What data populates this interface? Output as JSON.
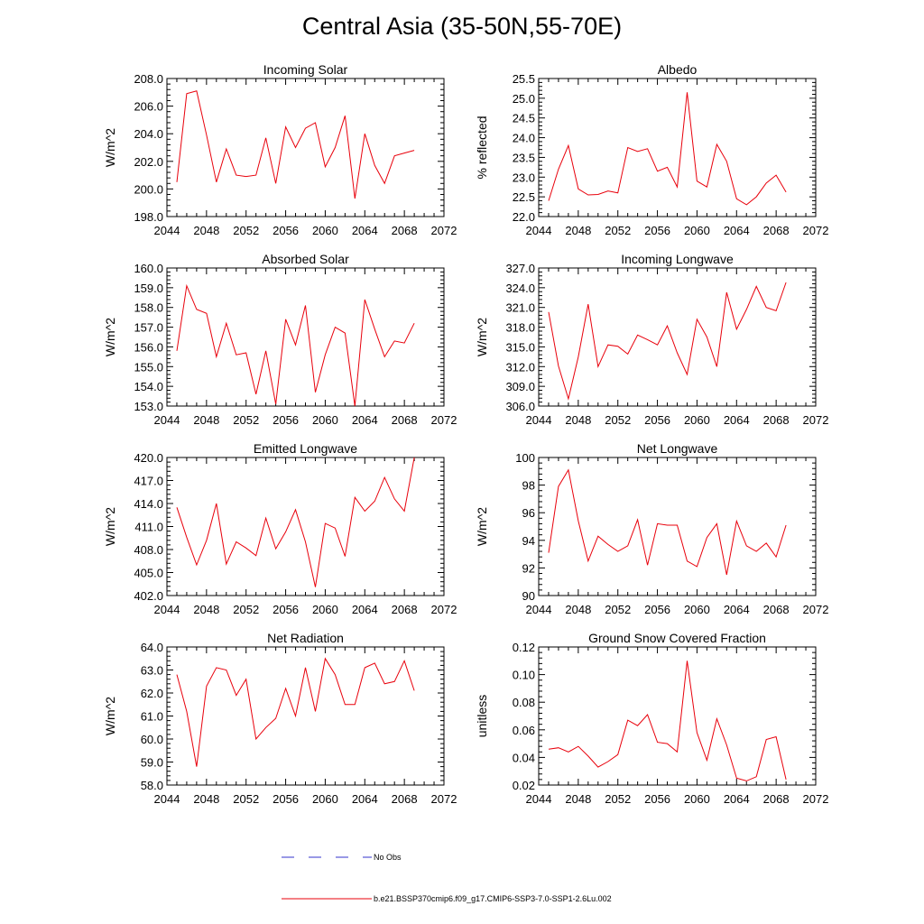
{
  "figure": {
    "title": "Central Asia (35-50N,55-70E)"
  },
  "legend": [
    {
      "label": "No Obs",
      "color": "#3333cc",
      "dashed": true
    },
    {
      "label": "b.e21.BSSP370cmip6.f09_g17.CMIP6-SSP3-7.0-SSP1-2.6Lu.002",
      "color": "#e8000b",
      "dashed": false
    }
  ],
  "chart_data": [
    {
      "type": "line",
      "title": "Incoming Solar",
      "xlabel": "",
      "ylabel": "W/m^2",
      "xlim": [
        2044,
        2072
      ],
      "ylim": [
        198.0,
        208.0
      ],
      "xticks": [
        2044,
        2048,
        2052,
        2056,
        2060,
        2064,
        2068,
        2072
      ],
      "yticks": [
        "198.0",
        "200.0",
        "202.0",
        "204.0",
        "206.0",
        "208.0"
      ],
      "series": [
        {
          "color": "#e8000b",
          "x": [
            2045,
            2046,
            2047,
            2048,
            2049,
            2050,
            2051,
            2052,
            2053,
            2054,
            2055,
            2056,
            2057,
            2058,
            2059,
            2060,
            2061,
            2062,
            2063,
            2064,
            2065,
            2066,
            2067,
            2068,
            2069
          ],
          "values": [
            200.5,
            206.9,
            207.1,
            203.9,
            200.5,
            202.9,
            201.0,
            200.9,
            201.0,
            203.7,
            200.4,
            204.5,
            203.0,
            204.4,
            204.8,
            201.6,
            203.0,
            205.3,
            199.3,
            204.0,
            201.7,
            200.4,
            202.4,
            202.6,
            202.8
          ]
        }
      ]
    },
    {
      "type": "line",
      "title": "Albedo",
      "xlabel": "",
      "ylabel": "% reflected",
      "xlim": [
        2044,
        2072
      ],
      "ylim": [
        22.0,
        25.5
      ],
      "xticks": [
        2044,
        2048,
        2052,
        2056,
        2060,
        2064,
        2068,
        2072
      ],
      "yticks": [
        "22.0",
        "22.5",
        "23.0",
        "23.5",
        "24.0",
        "24.5",
        "25.0",
        "25.5"
      ],
      "series": [
        {
          "color": "#e8000b",
          "x": [
            2045,
            2046,
            2047,
            2048,
            2049,
            2050,
            2051,
            2052,
            2053,
            2054,
            2055,
            2056,
            2057,
            2058,
            2059,
            2060,
            2061,
            2062,
            2063,
            2064,
            2065,
            2066,
            2067,
            2068,
            2069
          ],
          "values": [
            22.4,
            23.2,
            23.8,
            22.7,
            22.55,
            22.56,
            22.65,
            22.6,
            23.75,
            23.65,
            23.72,
            23.15,
            23.25,
            22.75,
            25.15,
            22.9,
            22.75,
            23.83,
            23.4,
            22.45,
            22.3,
            22.5,
            22.85,
            23.05,
            22.62
          ]
        }
      ]
    },
    {
      "type": "line",
      "title": "Absorbed Solar",
      "xlabel": "",
      "ylabel": "W/m^2",
      "xlim": [
        2044,
        2072
      ],
      "ylim": [
        153.0,
        160.0
      ],
      "xticks": [
        2044,
        2048,
        2052,
        2056,
        2060,
        2064,
        2068,
        2072
      ],
      "yticks": [
        "153.0",
        "154.0",
        "155.0",
        "156.0",
        "157.0",
        "158.0",
        "159.0",
        "160.0"
      ],
      "series": [
        {
          "color": "#e8000b",
          "x": [
            2045,
            2046,
            2047,
            2048,
            2049,
            2050,
            2051,
            2052,
            2053,
            2054,
            2055,
            2056,
            2057,
            2058,
            2059,
            2060,
            2061,
            2062,
            2063,
            2064,
            2065,
            2066,
            2067,
            2068,
            2069
          ],
          "values": [
            155.8,
            159.1,
            157.9,
            157.7,
            155.5,
            157.2,
            155.6,
            155.7,
            153.6,
            155.8,
            153.1,
            157.4,
            156.1,
            158.1,
            153.7,
            155.6,
            157.0,
            156.7,
            153.0,
            158.4,
            156.9,
            155.5,
            156.3,
            156.2,
            157.2
          ]
        }
      ]
    },
    {
      "type": "line",
      "title": "Incoming Longwave",
      "xlabel": "",
      "ylabel": "W/m^2",
      "xlim": [
        2044,
        2072
      ],
      "ylim": [
        306.0,
        327.0
      ],
      "xticks": [
        2044,
        2048,
        2052,
        2056,
        2060,
        2064,
        2068,
        2072
      ],
      "yticks": [
        "306.0",
        "309.0",
        "312.0",
        "315.0",
        "318.0",
        "321.0",
        "324.0",
        "327.0"
      ],
      "series": [
        {
          "color": "#e8000b",
          "x": [
            2045,
            2046,
            2047,
            2048,
            2049,
            2050,
            2051,
            2052,
            2053,
            2054,
            2055,
            2056,
            2057,
            2058,
            2059,
            2060,
            2061,
            2062,
            2063,
            2064,
            2065,
            2066,
            2067,
            2068,
            2069
          ],
          "values": [
            320.3,
            312.1,
            307.1,
            313.5,
            321.5,
            312.0,
            315.3,
            315.1,
            313.9,
            316.8,
            316.1,
            315.3,
            318.2,
            314.1,
            310.8,
            319.2,
            316.5,
            312.0,
            323.3,
            317.7,
            320.7,
            324.2,
            321.0,
            320.5,
            324.8
          ]
        }
      ]
    },
    {
      "type": "line",
      "title": "Emitted Longwave",
      "xlabel": "",
      "ylabel": "W/m^2",
      "xlim": [
        2044,
        2072
      ],
      "ylim": [
        402.0,
        420.0
      ],
      "xticks": [
        2044,
        2048,
        2052,
        2056,
        2060,
        2064,
        2068,
        2072
      ],
      "yticks": [
        "402.0",
        "405.0",
        "408.0",
        "411.0",
        "414.0",
        "417.0",
        "420.0"
      ],
      "series": [
        {
          "color": "#e8000b",
          "x": [
            2045,
            2046,
            2047,
            2048,
            2049,
            2050,
            2051,
            2052,
            2053,
            2054,
            2055,
            2056,
            2057,
            2058,
            2059,
            2060,
            2061,
            2062,
            2063,
            2064,
            2065,
            2066,
            2067,
            2068,
            2069
          ],
          "values": [
            413.5,
            409.6,
            406.0,
            409.2,
            414.0,
            406.1,
            409.0,
            408.2,
            407.2,
            412.1,
            408.1,
            410.3,
            413.2,
            409.0,
            403.1,
            411.4,
            410.8,
            407.1,
            414.8,
            413.0,
            414.3,
            417.4,
            414.6,
            413.0,
            420.0
          ]
        }
      ]
    },
    {
      "type": "line",
      "title": "Net Longwave",
      "xlabel": "",
      "ylabel": "W/m^2",
      "xlim": [
        2044,
        2072
      ],
      "ylim": [
        90,
        100
      ],
      "xticks": [
        2044,
        2048,
        2052,
        2056,
        2060,
        2064,
        2068,
        2072
      ],
      "yticks": [
        "90",
        "92",
        "94",
        "96",
        "98",
        "100"
      ],
      "series": [
        {
          "color": "#e8000b",
          "x": [
            2045,
            2046,
            2047,
            2048,
            2049,
            2050,
            2051,
            2052,
            2053,
            2054,
            2055,
            2056,
            2057,
            2058,
            2059,
            2060,
            2061,
            2062,
            2063,
            2064,
            2065,
            2066,
            2067,
            2068,
            2069
          ],
          "values": [
            93.1,
            97.9,
            99.1,
            95.4,
            92.5,
            94.3,
            93.7,
            93.2,
            93.6,
            95.5,
            92.2,
            95.2,
            95.1,
            95.1,
            92.5,
            92.1,
            94.2,
            95.2,
            91.5,
            95.4,
            93.6,
            93.2,
            93.8,
            92.8,
            95.1
          ]
        }
      ]
    },
    {
      "type": "line",
      "title": "Net Radiation",
      "xlabel": "",
      "ylabel": "W/m^2",
      "xlim": [
        2044,
        2072
      ],
      "ylim": [
        58.0,
        64.0
      ],
      "xticks": [
        2044,
        2048,
        2052,
        2056,
        2060,
        2064,
        2068,
        2072
      ],
      "yticks": [
        "58.0",
        "59.0",
        "60.0",
        "61.0",
        "62.0",
        "63.0",
        "64.0"
      ],
      "series": [
        {
          "color": "#e8000b",
          "x": [
            2045,
            2046,
            2047,
            2048,
            2049,
            2050,
            2051,
            2052,
            2053,
            2054,
            2055,
            2056,
            2057,
            2058,
            2059,
            2060,
            2061,
            2062,
            2063,
            2064,
            2065,
            2066,
            2067,
            2068,
            2069
          ],
          "values": [
            62.8,
            61.2,
            58.8,
            62.3,
            63.1,
            63.0,
            61.9,
            62.6,
            60.0,
            60.5,
            60.9,
            62.2,
            61.0,
            63.1,
            61.2,
            63.5,
            62.8,
            61.5,
            61.5,
            63.1,
            63.3,
            62.4,
            62.5,
            63.4,
            62.1
          ]
        }
      ]
    },
    {
      "type": "line",
      "title": "Ground Snow Covered Fraction",
      "xlabel": "",
      "ylabel": "unitless",
      "xlim": [
        2044,
        2072
      ],
      "ylim": [
        0.02,
        0.12
      ],
      "xticks": [
        2044,
        2048,
        2052,
        2056,
        2060,
        2064,
        2068,
        2072
      ],
      "yticks": [
        "0.02",
        "0.04",
        "0.06",
        "0.08",
        "0.10",
        "0.12"
      ],
      "series": [
        {
          "color": "#e8000b",
          "x": [
            2045,
            2046,
            2047,
            2048,
            2049,
            2050,
            2051,
            2052,
            2053,
            2054,
            2055,
            2056,
            2057,
            2058,
            2059,
            2060,
            2061,
            2062,
            2063,
            2064,
            2065,
            2066,
            2067,
            2068,
            2069
          ],
          "values": [
            0.046,
            0.047,
            0.044,
            0.048,
            0.041,
            0.033,
            0.037,
            0.042,
            0.067,
            0.063,
            0.071,
            0.051,
            0.05,
            0.044,
            0.11,
            0.058,
            0.038,
            0.068,
            0.049,
            0.025,
            0.023,
            0.026,
            0.053,
            0.055,
            0.024
          ]
        }
      ]
    }
  ]
}
